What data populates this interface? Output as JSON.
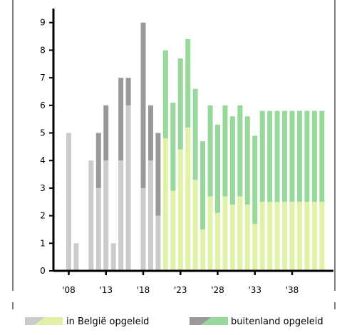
{
  "chart_data": {
    "type": "bar",
    "stacked": true,
    "x": [
      2008,
      2009,
      2010,
      2011,
      2012,
      2013,
      2014,
      2015,
      2016,
      2017,
      2018,
      2019,
      2020,
      2021,
      2022,
      2023,
      2024,
      2025,
      2026,
      2027,
      2028,
      2029,
      2030,
      2031,
      2032,
      2033,
      2034,
      2035,
      2036,
      2037,
      2038,
      2039,
      2040,
      2041,
      2042
    ],
    "series": [
      {
        "name": "in België opgeleid",
        "values": [
          5,
          1,
          0,
          4,
          3,
          4,
          1,
          4,
          6,
          0,
          3,
          4,
          2,
          4.8,
          2.9,
          4.4,
          5.2,
          3.3,
          1.5,
          2.7,
          2.1,
          2.7,
          2.4,
          2.7,
          2.4,
          1.7,
          2.5,
          2.5,
          2.5,
          2.5,
          2.5,
          2.5,
          2.5,
          2.5,
          2.5
        ]
      },
      {
        "name": "buitenland opgeleid",
        "values": [
          0,
          0,
          0,
          0,
          2,
          2,
          0,
          3,
          1,
          0,
          6,
          2,
          3,
          3.2,
          3.2,
          3.3,
          3.2,
          3.3,
          3.2,
          3.3,
          3.2,
          3.3,
          3.2,
          3.3,
          3.2,
          3.2,
          3.3,
          3.3,
          3.3,
          3.3,
          3.3,
          3.3,
          3.3,
          3.3,
          3.3
        ]
      }
    ],
    "projection_start": 2021,
    "colors": {
      "domestic_historic": "#cbcbcb",
      "foreign_historic": "#999999",
      "domestic_projected": "#e1f2a6",
      "foreign_projected": "#97d99a"
    },
    "y_ticks": [
      "0",
      "1",
      "2",
      "3",
      "4",
      "5",
      "6",
      "7",
      "8",
      "9"
    ],
    "y_tick_values": [
      0,
      1,
      2,
      3,
      4,
      5,
      6,
      7,
      8,
      9
    ],
    "x_tick_labels": [
      "'08",
      "'13",
      "'18",
      "'23",
      "'28",
      "'33",
      "'38"
    ],
    "x_tick_values": [
      2008,
      2013,
      2018,
      2023,
      2028,
      2033,
      2038
    ],
    "ylim": [
      0,
      9.6
    ],
    "grid": false,
    "legend_position": "bottom"
  },
  "legend": {
    "items": [
      {
        "label": "in België opgeleid"
      },
      {
        "label": "buitenland opgeleid"
      }
    ]
  }
}
